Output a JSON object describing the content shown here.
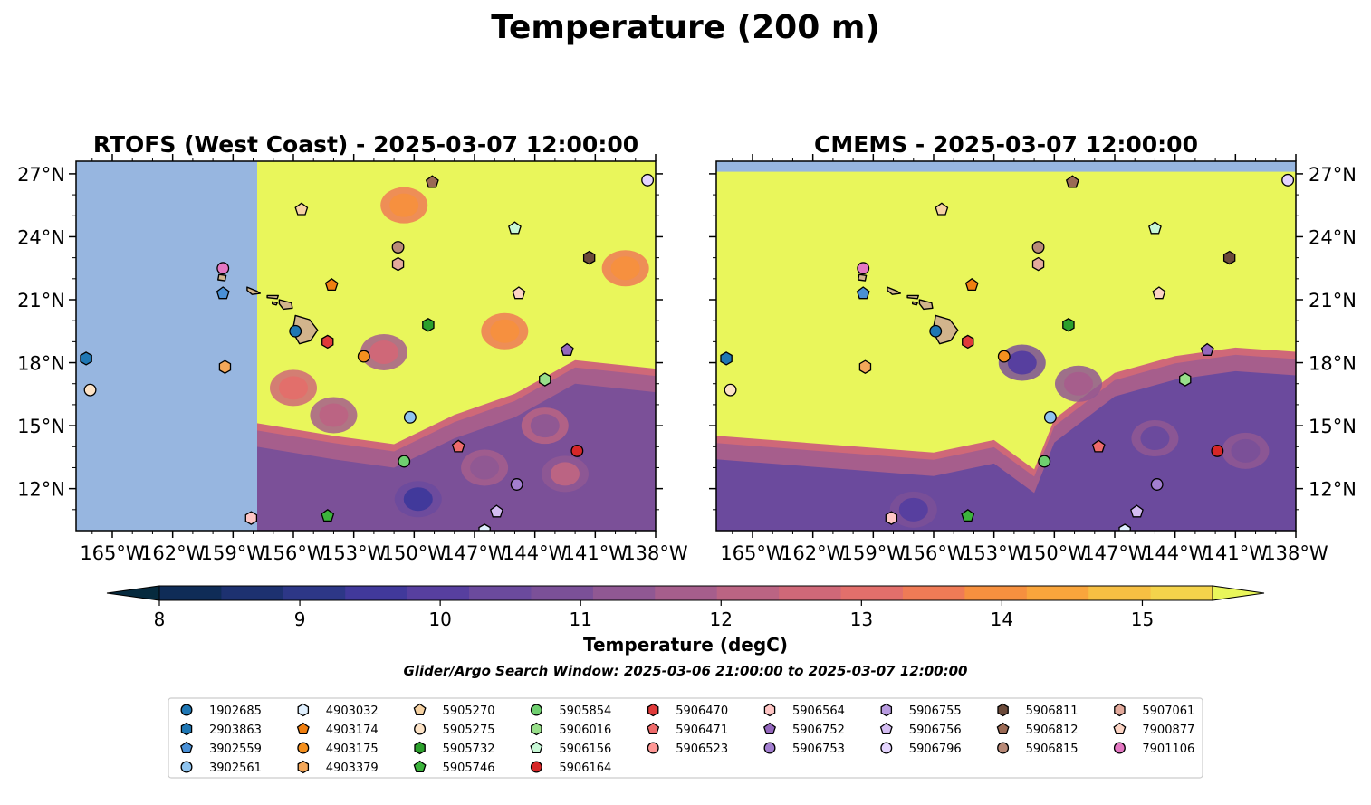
{
  "figure": {
    "title": "Temperature (200 m)",
    "search_window": "Glider/Argo Search Window: 2025-03-06 21:00:00 to 2025-03-07 12:00:00"
  },
  "colors": {
    "land_mask": "#97b6e0",
    "island_fill": "#d2b48c",
    "colormap": [
      "#062a3e",
      "#0f2c57",
      "#1d3170",
      "#2d3787",
      "#41399b",
      "#573f9f",
      "#6b4a9d",
      "#7b5098",
      "#905893",
      "#a65e8c",
      "#bb6483",
      "#cf6878",
      "#e26f6b",
      "#ef7b56",
      "#f6903f",
      "#f9a53c",
      "#f6bf43",
      "#f4d34b",
      "#e9f65b"
    ]
  },
  "chart_data": [
    {
      "type": "heatmap",
      "title": "RTOFS (West Coast) - 2025-03-07 12:00:00",
      "x_ticks": [
        "165°W",
        "162°W",
        "159°W",
        "156°W",
        "153°W",
        "150°W",
        "147°W",
        "144°W",
        "141°W",
        "138°W"
      ],
      "y_ticks": [
        "27°N",
        "24°N",
        "21°N",
        "18°N",
        "15°N",
        "12°N"
      ],
      "xlim": [
        -166.8,
        -138
      ],
      "ylim": [
        10.0,
        27.6
      ],
      "y_axis_side": "left",
      "masked_west_of": -157.8,
      "background_value": 15.6,
      "warm_boundary_lat": [
        {
          "lon": -157.8,
          "lat": 14.6
        },
        {
          "lon": -154,
          "lat": 14.0
        },
        {
          "lon": -151,
          "lat": 13.6
        },
        {
          "lon": -148,
          "lat": 15.0
        },
        {
          "lon": -145,
          "lat": 16.0
        },
        {
          "lon": -142,
          "lat": 17.6
        },
        {
          "lon": -138,
          "lat": 17.2
        }
      ],
      "deep_value": 11.0,
      "features": [
        {
          "lon": -154.0,
          "lat": 15.5,
          "value": 12.8
        },
        {
          "lon": -156.0,
          "lat": 16.8,
          "value": 13.8
        },
        {
          "lon": -151.5,
          "lat": 18.5,
          "value": 13.0
        },
        {
          "lon": -149.8,
          "lat": 11.5,
          "value": 9.8
        },
        {
          "lon": -146.5,
          "lat": 13.0,
          "value": 11.6
        },
        {
          "lon": -142.5,
          "lat": 12.7,
          "value": 12.6
        },
        {
          "lon": -143.5,
          "lat": 15.0,
          "value": 11.8
        },
        {
          "lon": -150.5,
          "lat": 25.5,
          "value": 14.9
        },
        {
          "lon": -145.5,
          "lat": 19.5,
          "value": 14.9
        },
        {
          "lon": -139.5,
          "lat": 22.5,
          "value": 14.8
        }
      ]
    },
    {
      "type": "heatmap",
      "title": "CMEMS - 2025-03-07 12:00:00",
      "x_ticks": [
        "165°W",
        "162°W",
        "159°W",
        "156°W",
        "153°W",
        "150°W",
        "147°W",
        "144°W",
        "141°W",
        "138°W"
      ],
      "y_ticks": [
        "27°N",
        "24°N",
        "21°N",
        "18°N",
        "15°N",
        "12°N"
      ],
      "xlim": [
        -166.8,
        -138
      ],
      "ylim": [
        10.0,
        27.6
      ],
      "y_axis_side": "right",
      "masked_north_of": 27.1,
      "background_value": 15.6,
      "warm_boundary_lat": [
        {
          "lon": -166.8,
          "lat": 14.0
        },
        {
          "lon": -160,
          "lat": 13.5
        },
        {
          "lon": -156,
          "lat": 13.2
        },
        {
          "lon": -153,
          "lat": 13.8
        },
        {
          "lon": -151,
          "lat": 12.4
        },
        {
          "lon": -150,
          "lat": 14.8
        },
        {
          "lon": -147,
          "lat": 17.0
        },
        {
          "lon": -144,
          "lat": 17.8
        },
        {
          "lon": -141,
          "lat": 18.2
        },
        {
          "lon": -138,
          "lat": 18.0
        }
      ],
      "deep_value": 10.6,
      "features": [
        {
          "lon": -151.6,
          "lat": 18.0,
          "value": 10.3
        },
        {
          "lon": -148.8,
          "lat": 17.0,
          "value": 12.3
        },
        {
          "lon": -157.0,
          "lat": 11.0,
          "value": 10.4
        },
        {
          "lon": -145.0,
          "lat": 14.4,
          "value": 10.7
        },
        {
          "lon": -140.5,
          "lat": 13.8,
          "value": 11.0
        }
      ]
    }
  ],
  "colorbar": {
    "label": "Temperature (degC)",
    "ticks": [
      "8",
      "9",
      "10",
      "11",
      "12",
      "13",
      "14",
      "15"
    ],
    "tick_values": [
      8,
      9,
      10,
      11,
      12,
      13,
      14,
      15
    ],
    "range": [
      8,
      15.5
    ],
    "step": 0.5
  },
  "islands": [
    {
      "name": "hawaii",
      "points": [
        [
          -155.9,
          20.25
        ],
        [
          -155.2,
          20.05
        ],
        [
          -154.8,
          19.55
        ],
        [
          -155.15,
          19.05
        ],
        [
          -155.7,
          18.9
        ],
        [
          -156.05,
          19.5
        ],
        [
          -155.95,
          19.95
        ]
      ]
    },
    {
      "name": "maui",
      "points": [
        [
          -156.7,
          21.0
        ],
        [
          -156.1,
          20.85
        ],
        [
          -156.05,
          20.6
        ],
        [
          -156.5,
          20.55
        ],
        [
          -156.7,
          20.8
        ]
      ]
    },
    {
      "name": "molokai",
      "points": [
        [
          -157.3,
          21.2
        ],
        [
          -156.75,
          21.2
        ],
        [
          -156.8,
          21.05
        ],
        [
          -157.3,
          21.1
        ]
      ]
    },
    {
      "name": "oahu",
      "points": [
        [
          -158.3,
          21.6
        ],
        [
          -157.8,
          21.4
        ],
        [
          -157.65,
          21.3
        ],
        [
          -158.05,
          21.25
        ],
        [
          -158.3,
          21.45
        ]
      ]
    },
    {
      "name": "kauai",
      "points": [
        [
          -159.7,
          22.2
        ],
        [
          -159.35,
          22.15
        ],
        [
          -159.4,
          21.9
        ],
        [
          -159.75,
          21.95
        ]
      ]
    },
    {
      "name": "lanai",
      "points": [
        [
          -157.05,
          20.9
        ],
        [
          -156.8,
          20.85
        ],
        [
          -156.85,
          20.75
        ],
        [
          -157.05,
          20.8
        ]
      ]
    }
  ],
  "floats": [
    {
      "id": "1902685",
      "marker": "circle",
      "color": "#1f77b4",
      "lon": -155.9,
      "lat": 19.5
    },
    {
      "id": "2903863",
      "marker": "hexagon",
      "color": "#1f77b4",
      "lon": -166.3,
      "lat": 18.2
    },
    {
      "id": "3902559",
      "marker": "pentagon",
      "color": "#4a90d6",
      "lon": -159.5,
      "lat": 21.3
    },
    {
      "id": "3902561",
      "marker": "circle",
      "color": "#8fc4ef",
      "lon": -150.2,
      "lat": 15.4
    },
    {
      "id": "4903032",
      "marker": "hexagon",
      "color": "#e0f0ff",
      "lon": -146.5,
      "lat": 10.0
    },
    {
      "id": "4903174",
      "marker": "pentagon",
      "color": "#f07f10",
      "lon": -154.1,
      "lat": 21.7
    },
    {
      "id": "4903175",
      "marker": "circle",
      "color": "#f5901e",
      "lon": -152.5,
      "lat": 18.3
    },
    {
      "id": "4903379",
      "marker": "hexagon",
      "color": "#f4a85a",
      "lon": -159.4,
      "lat": 17.8
    },
    {
      "id": "5905270",
      "marker": "pentagon",
      "color": "#f6d2a3",
      "lon": -155.6,
      "lat": 25.3
    },
    {
      "id": "5905275",
      "marker": "circle",
      "color": "#fde3c6",
      "lon": -166.1,
      "lat": 16.7
    },
    {
      "id": "5905732",
      "marker": "hexagon",
      "color": "#2ca02c",
      "lon": -149.3,
      "lat": 19.8
    },
    {
      "id": "5905746",
      "marker": "pentagon",
      "color": "#3cb33c",
      "lon": -154.3,
      "lat": 10.7
    },
    {
      "id": "5905854",
      "marker": "circle",
      "color": "#6fcf6f",
      "lon": -150.5,
      "lat": 13.3
    },
    {
      "id": "5906016",
      "marker": "hexagon",
      "color": "#98df8a",
      "lon": -143.5,
      "lat": 17.2
    },
    {
      "id": "5906156",
      "marker": "pentagon",
      "color": "#c8f8d6",
      "lon": -145.0,
      "lat": 24.4
    },
    {
      "id": "5906164",
      "marker": "circle",
      "color": "#d62728",
      "lon": -141.9,
      "lat": 13.8
    },
    {
      "id": "5906470",
      "marker": "hexagon",
      "color": "#e03a3a",
      "lon": -154.3,
      "lat": 19.0
    },
    {
      "id": "5906471",
      "marker": "pentagon",
      "color": "#ee6b6b",
      "lon": -147.8,
      "lat": 14.0
    },
    {
      "id": "5906523",
      "marker": "circle",
      "color": "#ff9896",
      "lon": -147.9,
      "lat": 9.7
    },
    {
      "id": "5906564",
      "marker": "hexagon",
      "color": "#ffc6c5",
      "lon": -158.1,
      "lat": 10.6
    },
    {
      "id": "5906752",
      "marker": "pentagon",
      "color": "#9467bd",
      "lon": -142.4,
      "lat": 18.6
    },
    {
      "id": "5906753",
      "marker": "circle",
      "color": "#a37fd0",
      "lon": -144.9,
      "lat": 12.2
    },
    {
      "id": "5906755",
      "marker": "hexagon",
      "color": "#b89be0",
      "lon": -149.0,
      "lat": 9.5
    },
    {
      "id": "5906756",
      "marker": "pentagon",
      "color": "#d4bdf2",
      "lon": -145.9,
      "lat": 10.9
    },
    {
      "id": "5906796",
      "marker": "circle",
      "color": "#e5d5ff",
      "lon": -138.4,
      "lat": 26.7
    },
    {
      "id": "5906811",
      "marker": "hexagon",
      "color": "#6b4a3a",
      "lon": -141.3,
      "lat": 23.0
    },
    {
      "id": "5906812",
      "marker": "pentagon",
      "color": "#9b6a55",
      "lon": -149.1,
      "lat": 26.6
    },
    {
      "id": "5906815",
      "marker": "circle",
      "color": "#b98a78",
      "lon": -150.8,
      "lat": 23.5
    },
    {
      "id": "5907061",
      "marker": "hexagon",
      "color": "#e3aa9c",
      "lon": -150.8,
      "lat": 22.7
    },
    {
      "id": "7900877",
      "marker": "pentagon",
      "color": "#fcd4c4",
      "lon": -144.8,
      "lat": 21.3
    },
    {
      "id": "7901106",
      "marker": "circle",
      "color": "#e377c2",
      "lon": -159.5,
      "lat": 22.5
    }
  ],
  "legend": {
    "columns": [
      [
        "1902685",
        "2903863",
        "3902559",
        "3902561"
      ],
      [
        "4903032",
        "4903174",
        "4903175",
        "4903379"
      ],
      [
        "5905270",
        "5905275",
        "5905732",
        "5905746"
      ],
      [
        "5905854",
        "5906016",
        "5906156",
        "5906164"
      ],
      [
        "5906470",
        "5906471",
        "5906523"
      ],
      [
        "5906564",
        "5906752",
        "5906753"
      ],
      [
        "5906755",
        "5906756",
        "5906796"
      ],
      [
        "5906811",
        "5906812",
        "5906815"
      ],
      [
        "5907061",
        "7900877",
        "7901106"
      ]
    ]
  }
}
